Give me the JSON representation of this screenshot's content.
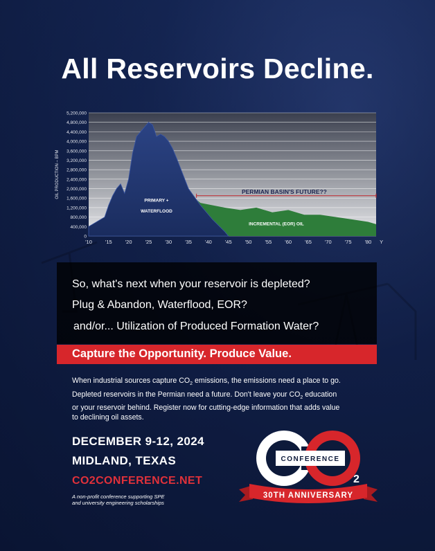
{
  "headline": "All Reservoirs Decline.",
  "chart_data": {
    "type": "area",
    "ylabel": "OIL PRODUCTION – BPM",
    "yticks": [
      "5,200,000",
      "4,800,000",
      "4,400,000",
      "4,000,000",
      "3,600,000",
      "3,200,000",
      "2,800,000",
      "2,400,000",
      "2,000,000",
      "1,600,000",
      "1,200,000",
      "800,000",
      "400,000",
      "0"
    ],
    "xticks": [
      "'10",
      "'15",
      "'20",
      "'25",
      "'30",
      "'35",
      "'40",
      "'45",
      "'50",
      "'55",
      "'60",
      "'65",
      "'70",
      "'75",
      "'80",
      "YEAR"
    ],
    "ylim": [
      0,
      5200000
    ],
    "series": [
      {
        "name": "PRIMARY + WATERFLOOD",
        "x": [
          10,
          12,
          14,
          15,
          16,
          17,
          18,
          19,
          20,
          21,
          22,
          23,
          24,
          25,
          26,
          27,
          28,
          29,
          30,
          31,
          32,
          35,
          38,
          41,
          44,
          45
        ],
        "values": [
          400000,
          600000,
          800000,
          1300000,
          1700000,
          2000000,
          2200000,
          1800000,
          2400000,
          3500000,
          4200000,
          4400000,
          4600000,
          4800000,
          4700000,
          4200000,
          4300000,
          4200000,
          4000000,
          3700000,
          3300000,
          2000000,
          1300000,
          700000,
          200000,
          0
        ]
      },
      {
        "name": "INCREMENTAL (EOR) OIL",
        "x": [
          35,
          38,
          41,
          44,
          48,
          52,
          56,
          60,
          64,
          68,
          72,
          76,
          80,
          82
        ],
        "values": [
          1800000,
          1400000,
          1300000,
          1200000,
          1100000,
          1200000,
          1000000,
          1100000,
          900000,
          900000,
          800000,
          700000,
          600000,
          500000
        ]
      }
    ],
    "annotations": {
      "future": "PERMIAN BASIN'S FUTURE??",
      "primary_line1": "PRIMARY +",
      "primary_line2": "WATERFLOOD",
      "eor": "INCREMENTAL (EOR) OIL"
    }
  },
  "questions": {
    "q1": "So, what's next when your reservoir is depleted?",
    "q2": "Plug & Abandon, Waterflood, EOR?",
    "q3": "and/or... Utilization of Produced Formation Water?"
  },
  "tagline": "Capture the Opportunity. Produce Value.",
  "body": {
    "l1a": "When industrial sources capture CO",
    "l1b": "2",
    "l1c": " emissions, the emissions need a place to go.",
    "l2": "Depleted reservoirs in the Permian need a future. Don't leave your CO",
    "l2b": "2",
    "l2c": " education",
    "l3": "or your reservoir behind. Register now for cutting-edge information that adds value",
    "l4": "to declining oil assets."
  },
  "event": {
    "dates": "DECEMBER 9-12, 2024",
    "location": "MIDLAND, TEXAS",
    "website": "CO2CONFERENCE.NET",
    "note1": "A non-profit conference supporting SPE",
    "note2": "and university engineering scholarships"
  },
  "logo": {
    "conference": "CONFERENCE",
    "sub": "2",
    "anniversary": "30TH ANNIVERSARY"
  },
  "colors": {
    "accent_red": "#d7262b",
    "navy": "#0d1a3a",
    "chart_blue": "#24386e",
    "eor_green": "#2e7d3a"
  }
}
